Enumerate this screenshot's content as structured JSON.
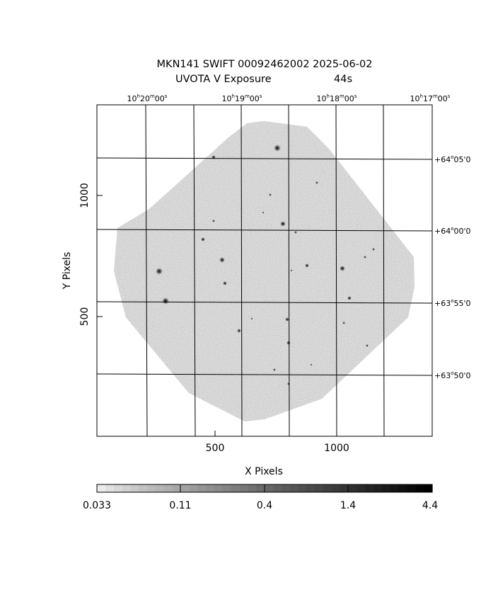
{
  "title": {
    "line1": "MKN141  SWIFT 00092462002  2025-06-02",
    "line2_label": "UVOTA V Exposure",
    "line2_value": "44s"
  },
  "axes": {
    "xlabel": "X Pixels",
    "ylabel": "Y Pixels",
    "x_ticks": [
      "500",
      "1000"
    ],
    "y_ticks": [
      "500",
      "1000"
    ],
    "ra_ticks": [
      {
        "h": "10",
        "m": "20",
        "s": "00"
      },
      {
        "h": "10",
        "m": "19",
        "s": "00"
      },
      {
        "h": "10",
        "m": "18",
        "s": "00"
      },
      {
        "h": "10",
        "m": "17",
        "s": "00"
      }
    ],
    "dec_ticks": [
      {
        "d": "+64",
        "m": "05",
        "s": "0"
      },
      {
        "d": "+64",
        "m": "00",
        "s": "0"
      },
      {
        "d": "+63",
        "m": "55",
        "s": "0"
      },
      {
        "d": "+63",
        "m": "50",
        "s": "0"
      }
    ]
  },
  "colorbar": {
    "labels": [
      "0.033",
      "0.11",
      "0.4",
      "1.4",
      "4.4"
    ]
  }
}
